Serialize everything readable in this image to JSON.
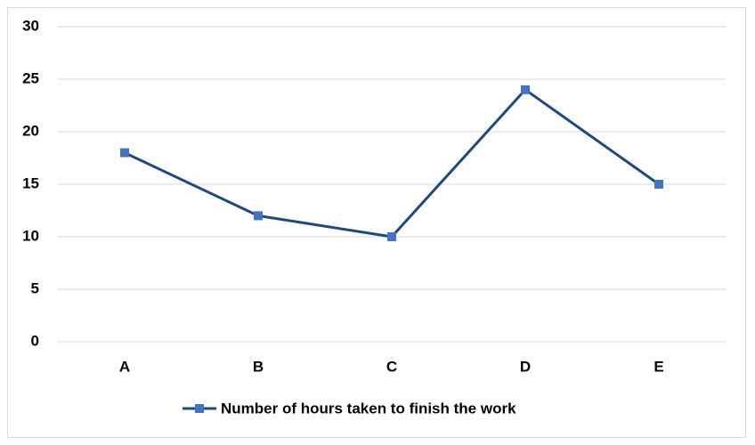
{
  "chart_data": {
    "type": "line",
    "categories": [
      "A",
      "B",
      "C",
      "D",
      "E"
    ],
    "series": [
      {
        "name": "Number of hours taken to finish the work",
        "color": "#1f497d",
        "marker_color": "#4472c4",
        "values": [
          18,
          12,
          10,
          24,
          15
        ]
      }
    ],
    "ylim": [
      0,
      30
    ],
    "yticks": [
      0,
      5,
      10,
      15,
      20,
      25,
      30
    ],
    "grid": true,
    "legend": "bottom"
  }
}
